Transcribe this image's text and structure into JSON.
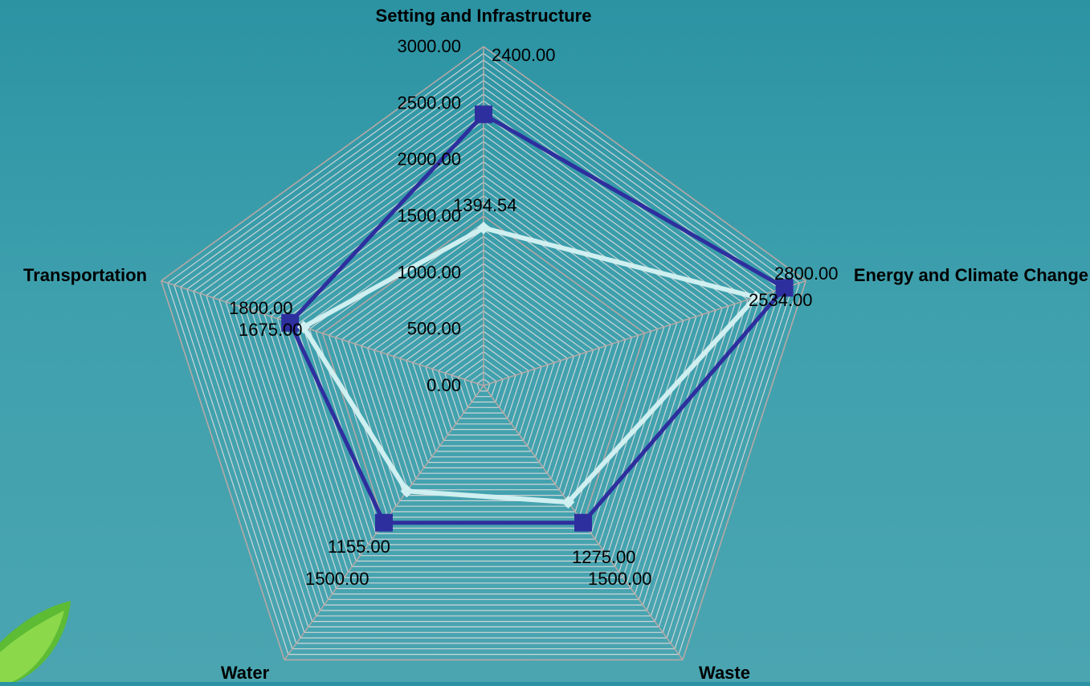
{
  "chart_data": {
    "type": "radar",
    "axes": [
      "Setting and Infrastructure",
      "Energy and Climate Change",
      "Waste",
      "Water",
      "Transportation"
    ],
    "rmax": 3000,
    "ticks": [
      "0.00",
      "500.00",
      "1000.00",
      "1500.00",
      "2000.00",
      "2500.00",
      "3000.00"
    ],
    "series": [
      {
        "values": [
          2400,
          2800,
          1500,
          1500,
          1800
        ],
        "labels": [
          "2400.00",
          "2800.00",
          "1500.00",
          "1500.00",
          "1800.00"
        ],
        "color": "#2e2f9e",
        "marker": "square"
      },
      {
        "values": [
          1394.54,
          2534,
          1275,
          1155,
          1675
        ],
        "labels": [
          "1394.54",
          "2534.00",
          "1275.00",
          "1155.00",
          "1675.00"
        ],
        "color": "#cfeff0",
        "marker": "diamond"
      }
    ]
  },
  "decor": {
    "logo": "leaf-logo-icon",
    "grid_color": "#b7a9a6"
  }
}
